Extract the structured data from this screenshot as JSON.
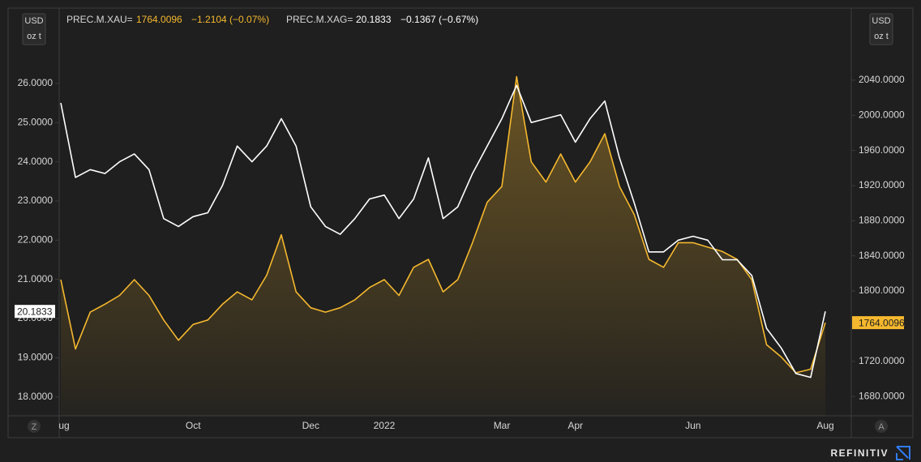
{
  "chart_data": {
    "type": "line",
    "unit_top": "USD",
    "unit_bottom": "oz t",
    "categories": [
      "Aug",
      null,
      null,
      null,
      null,
      null,
      null,
      null,
      null,
      "Oct",
      null,
      null,
      null,
      null,
      null,
      null,
      null,
      "Dec",
      null,
      null,
      null,
      null,
      "2022",
      null,
      null,
      null,
      null,
      null,
      null,
      null,
      "Mar",
      null,
      null,
      null,
      null,
      "Apr",
      null,
      null,
      null,
      null,
      null,
      null,
      null,
      "Jun",
      null,
      null,
      null,
      null,
      null,
      null,
      null,
      null,
      "Aug"
    ],
    "series": [
      {
        "name": "PREC.M.XAU=",
        "color": "#f5b82e",
        "axis": "y2",
        "change": "−1.2104 (−0.07%)",
        "values": [
          1813,
          1734,
          1776,
          1785,
          1795,
          1813,
          1795,
          1767,
          1744,
          1762,
          1767,
          1785,
          1799,
          1790,
          1818,
          1864,
          1799,
          1781,
          1776,
          1781,
          1790,
          1804,
          1813,
          1795,
          1827,
          1836,
          1799,
          1813,
          1855,
          1901,
          1919,
          2044,
          1947,
          1924,
          1956,
          1924,
          1947,
          1979,
          1919,
          1887,
          1836,
          1827,
          1855,
          1855,
          1850,
          1845,
          1836,
          1813,
          1739,
          1725,
          1707,
          1711,
          1764.0096
        ]
      },
      {
        "name": "PREC.M.XAG=",
        "color": "#ffffff",
        "axis": "y",
        "change": "−0.1367 (−0.67%)",
        "values": [
          25.5,
          23.6,
          23.8,
          23.7,
          24.0,
          24.2,
          23.8,
          22.55,
          22.35,
          22.6,
          22.7,
          23.4,
          24.4,
          24.0,
          24.4,
          25.1,
          24.4,
          22.85,
          22.35,
          22.15,
          22.55,
          23.05,
          23.15,
          22.55,
          23.05,
          24.1,
          22.55,
          22.85,
          23.7,
          24.4,
          25.1,
          25.95,
          25.0,
          25.1,
          25.2,
          24.5,
          25.1,
          25.55,
          24.1,
          22.95,
          21.7,
          21.7,
          22.0,
          22.1,
          22.0,
          21.5,
          21.5,
          21.1,
          19.75,
          19.25,
          18.6,
          18.5,
          20.1833
        ]
      }
    ],
    "ylim": [
      17.52,
      27.92
    ],
    "yticks": [
      {
        "value": 18,
        "label": "18.0000"
      },
      {
        "value": 19,
        "label": "19.0000"
      },
      {
        "value": 20,
        "label": "20.0000"
      },
      {
        "value": 21,
        "label": "21.0000"
      },
      {
        "value": 22,
        "label": "22.0000"
      },
      {
        "value": 23,
        "label": "23.0000"
      },
      {
        "value": 24,
        "label": "24.0000"
      },
      {
        "value": 25,
        "label": "25.0000"
      },
      {
        "value": 26,
        "label": "26.0000"
      }
    ],
    "y2lim": [
      1658,
      2122
    ],
    "y2ticks": [
      {
        "value": 1680,
        "label": "1680.0000"
      },
      {
        "value": 1720,
        "label": "1720.0000"
      },
      {
        "value": 1760,
        "label": "1760.0000"
      },
      {
        "value": 1800,
        "label": "1800.0000"
      },
      {
        "value": 1840,
        "label": "1840.0000"
      },
      {
        "value": 1880,
        "label": "1880.0000"
      },
      {
        "value": 1920,
        "label": "1920.0000"
      },
      {
        "value": 1960,
        "label": "1960.0000"
      },
      {
        "value": 2000,
        "label": "2000.0000"
      },
      {
        "value": 2040,
        "label": "2040.0000"
      }
    ],
    "grid": false
  },
  "buttons": [
    "Z",
    "A"
  ],
  "brand": "REFINITIV"
}
